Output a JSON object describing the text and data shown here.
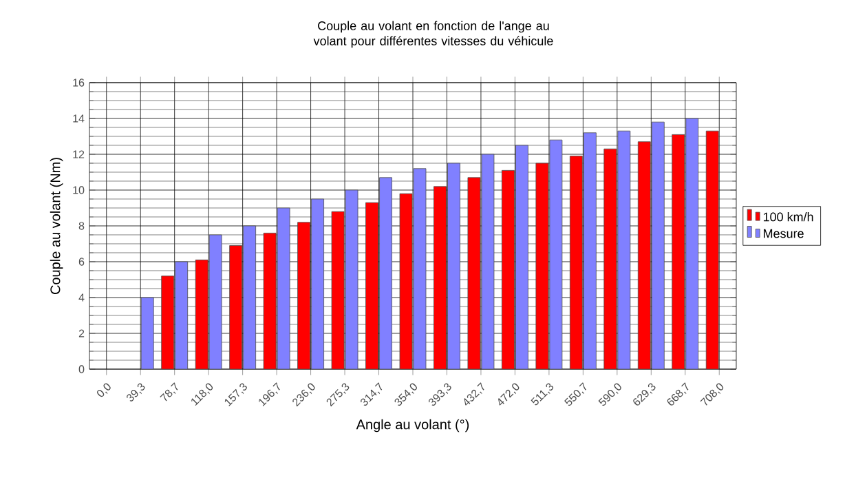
{
  "chart_data": {
    "type": "bar",
    "title": "Couple au volant en fonction de l'ange au volant pour différentes vitesses du véhicule",
    "xlabel": "Angle au volant (°)",
    "ylabel": "Couple au volant (Nm)",
    "categories": [
      "0,0",
      "39,3",
      "78,7",
      "118,0",
      "157,3",
      "196,7",
      "236,0",
      "275,3",
      "314,7",
      "354,0",
      "393,3",
      "432,7",
      "472,0",
      "511,3",
      "550,7",
      "590,0",
      "629,3",
      "668,7",
      "708,0"
    ],
    "series": [
      {
        "name": "100 km/h",
        "color": "#ff0000",
        "values": [
          null,
          null,
          5.2,
          6.1,
          6.9,
          7.6,
          8.2,
          8.8,
          9.3,
          9.8,
          10.2,
          10.7,
          11.1,
          11.5,
          11.9,
          12.3,
          12.7,
          13.1,
          13.3
        ]
      },
      {
        "name": "Mesure",
        "color": "#8080ff",
        "values": [
          null,
          4.0,
          6.0,
          7.5,
          8.0,
          9.0,
          9.5,
          10.0,
          10.7,
          11.2,
          11.5,
          12.0,
          12.5,
          12.8,
          13.2,
          13.3,
          13.8,
          14.0,
          null
        ]
      }
    ],
    "ylim": [
      0,
      16
    ],
    "yticks": [
      0,
      2,
      4,
      6,
      8,
      10,
      12,
      14,
      16
    ],
    "grid": true,
    "legend": "right"
  }
}
